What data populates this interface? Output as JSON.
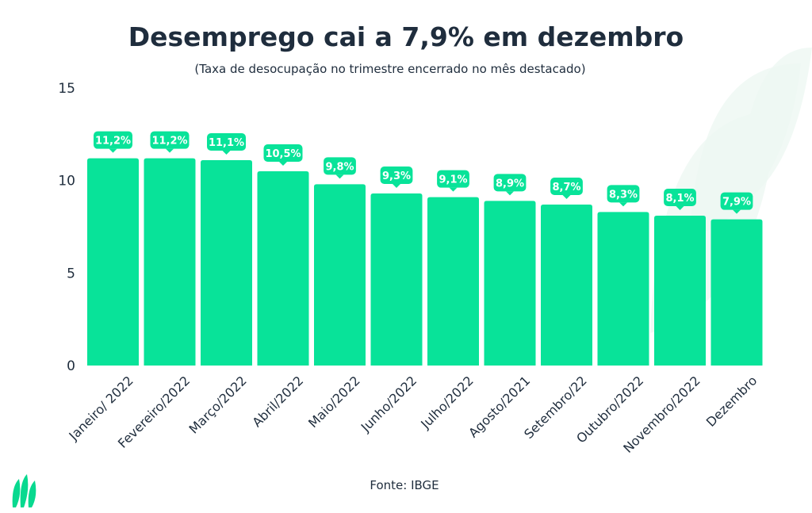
{
  "colors": {
    "bar": "#08e399",
    "text": "#1f2d3d",
    "watermark": "#eef8f3",
    "logo": "#08d98f"
  },
  "logo_icon": "leaf-logo-icon",
  "source": "Fonte: IBGE",
  "chart_data": {
    "type": "bar",
    "title": "Desemprego cai a 7,9% em dezembro",
    "subtitle": "(Taxa de desocupação no trimestre encerrado no mês destacado)",
    "categories": [
      "Janeiro/ 2022",
      "Fevereiro/2022",
      "Março/2022",
      "Abril/2022",
      "Maio/2022",
      "Junho/2022",
      "Julho/2022",
      "Agosto/2021",
      "Setembro/22",
      "Outubro/2022",
      "Novembro/2022",
      "Dezembro"
    ],
    "values": [
      11.2,
      11.2,
      11.1,
      10.5,
      9.8,
      9.3,
      9.1,
      8.9,
      8.7,
      8.3,
      8.1,
      7.9
    ],
    "value_labels": [
      "11,2%",
      "11,2%",
      "11,1%",
      "10,5%",
      "9,8%",
      "9,3%",
      "9,1%",
      "8,9%",
      "8,7%",
      "8,3%",
      "8,1%",
      "7,9%"
    ],
    "yticks": [
      "0",
      "5",
      "10",
      "15"
    ],
    "ylim": [
      0,
      15
    ],
    "xlabel": "",
    "ylabel": "",
    "grid": false,
    "legend": "none"
  }
}
